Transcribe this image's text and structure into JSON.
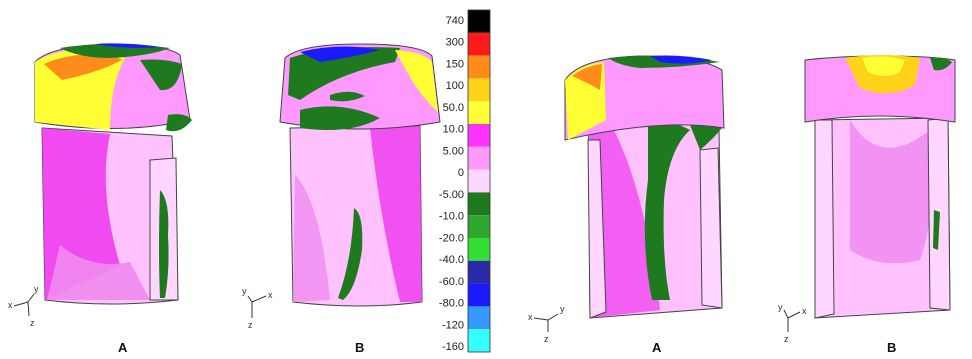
{
  "panel_labels": [
    "A",
    "B",
    "A",
    "B"
  ],
  "legend": {
    "ticks": [
      "740",
      "300",
      "150",
      "100",
      "50.0",
      "10.0",
      "5.00",
      "0",
      "-5.00",
      "-10.0",
      "-20.0",
      "-40.0",
      "-60.0",
      "-80.0",
      "-120",
      "-160"
    ],
    "colors": [
      "#000000",
      "#ff1a1a",
      "#ff8c1a",
      "#ffd21a",
      "#ffff33",
      "#ff33ff",
      "#ff99ff",
      "#ffd6ff",
      "#1f7a1f",
      "#2ea82e",
      "#33dd33",
      "#2a2aa8",
      "#1a1aff",
      "#3399ff",
      "#33ffff"
    ]
  },
  "axis_triads": [
    {
      "x": "x",
      "y": "y",
      "z": "z"
    },
    {
      "x": "x",
      "y": "y",
      "z": "z"
    },
    {
      "x": "x",
      "y": "y",
      "z": "z"
    },
    {
      "x": "x",
      "y": "y",
      "z": "z"
    }
  ]
}
